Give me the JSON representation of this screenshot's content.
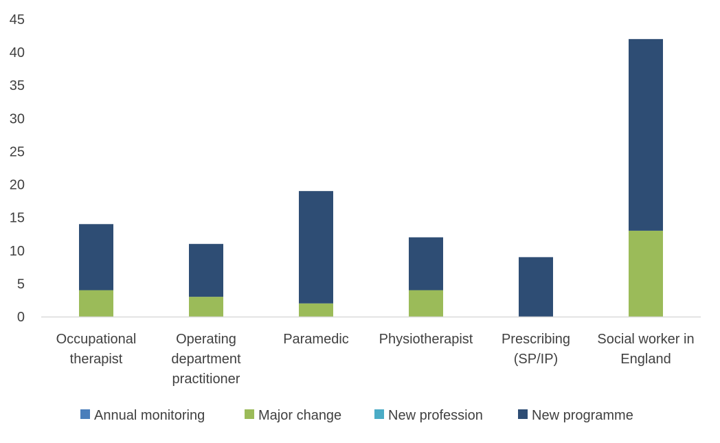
{
  "chart_data": {
    "type": "bar",
    "stacked": true,
    "title": "",
    "xlabel": "",
    "ylabel": "",
    "ylim": [
      0,
      45
    ],
    "yticks": [
      0,
      5,
      10,
      15,
      20,
      25,
      30,
      35,
      40,
      45
    ],
    "grid": false,
    "legend_position": "bottom",
    "categories": [
      [
        "Occupational",
        "therapist"
      ],
      [
        "Operating",
        "department",
        "practitioner"
      ],
      [
        "Paramedic"
      ],
      [
        "Physiotherapist"
      ],
      [
        "Prescribing",
        "(SP/IP)"
      ],
      [
        "Social worker in",
        "England"
      ]
    ],
    "series": [
      {
        "name": "Annual monitoring",
        "color": "#4a7ebb",
        "values": [
          0,
          0,
          0,
          0,
          0,
          0
        ]
      },
      {
        "name": "Major change",
        "color": "#9bbb59",
        "values": [
          4,
          3,
          2,
          4,
          0,
          13
        ]
      },
      {
        "name": "New profession",
        "color": "#4bacc6",
        "values": [
          0,
          0,
          0,
          0,
          0,
          0
        ]
      },
      {
        "name": "New programme",
        "color": "#2e4d74",
        "values": [
          10,
          8,
          17,
          8,
          9,
          29
        ]
      }
    ]
  }
}
